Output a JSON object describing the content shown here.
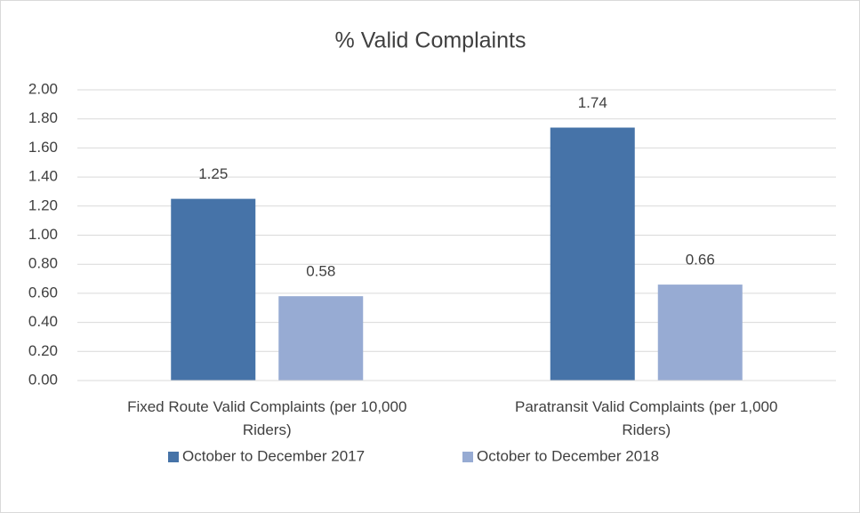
{
  "chart_data": {
    "type": "bar",
    "title": "% Valid Complaints",
    "categories": [
      "Fixed Route Valid Complaints (per 10,000 Riders)",
      "Paratransit Valid Complaints (per 1,000 Riders)"
    ],
    "series": [
      {
        "name": "October to December 2017",
        "color": "#4673a8",
        "values": [
          1.25,
          1.74
        ]
      },
      {
        "name": "October to December 2018",
        "color": "#97abd3",
        "values": [
          0.58,
          0.66
        ]
      }
    ],
    "ylim": [
      0,
      2
    ],
    "yticks": [
      {
        "value": 0,
        "label": "0.00"
      },
      {
        "value": 0.2,
        "label": "0.20"
      },
      {
        "value": 0.4,
        "label": "0.40"
      },
      {
        "value": 0.6,
        "label": "0.60"
      },
      {
        "value": 0.8,
        "label": "0.80"
      },
      {
        "value": 1,
        "label": "1.00"
      },
      {
        "value": 1.2,
        "label": "1.20"
      },
      {
        "value": 1.4,
        "label": "1.40"
      },
      {
        "value": 1.6,
        "label": "1.60"
      },
      {
        "value": 1.8,
        "label": "1.80"
      },
      {
        "value": 2,
        "label": "2.00"
      }
    ],
    "grid": true,
    "legend": "bottom"
  }
}
